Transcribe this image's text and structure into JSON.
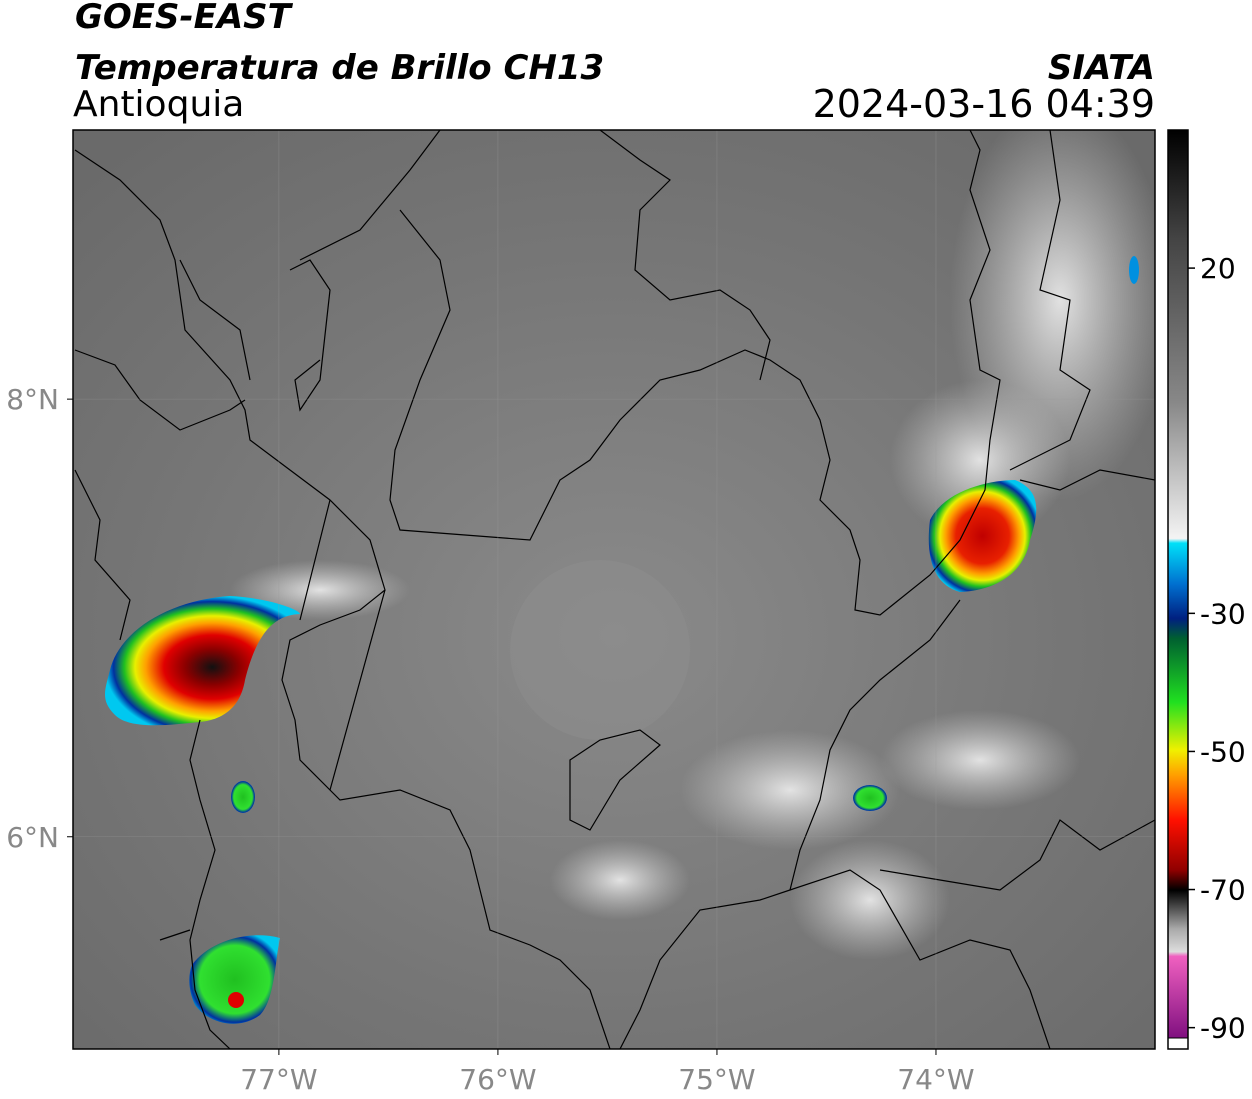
{
  "header": {
    "title": "GOES-EAST",
    "subtitle": "Temperatura de Brillo CH13",
    "region": "Antioquia",
    "source": "SIATA",
    "datetime": "2024-03-16 04:39"
  },
  "map": {
    "xlim": [
      -77.94,
      -73.0
    ],
    "ylim": [
      5.03,
      9.23
    ],
    "xticks": [
      {
        "value": -77,
        "label": "77°W"
      },
      {
        "value": -76,
        "label": "76°W"
      },
      {
        "value": -75,
        "label": "75°W"
      },
      {
        "value": -74,
        "label": "74°W"
      }
    ],
    "yticks": [
      {
        "value": 8,
        "label": "8°N"
      },
      {
        "value": 6,
        "label": "6°N"
      }
    ],
    "grid": true
  },
  "colorbar": {
    "lim": [
      -91.5,
      40
    ],
    "ticks": [
      20,
      -30,
      -50,
      -70,
      -90
    ]
  }
}
